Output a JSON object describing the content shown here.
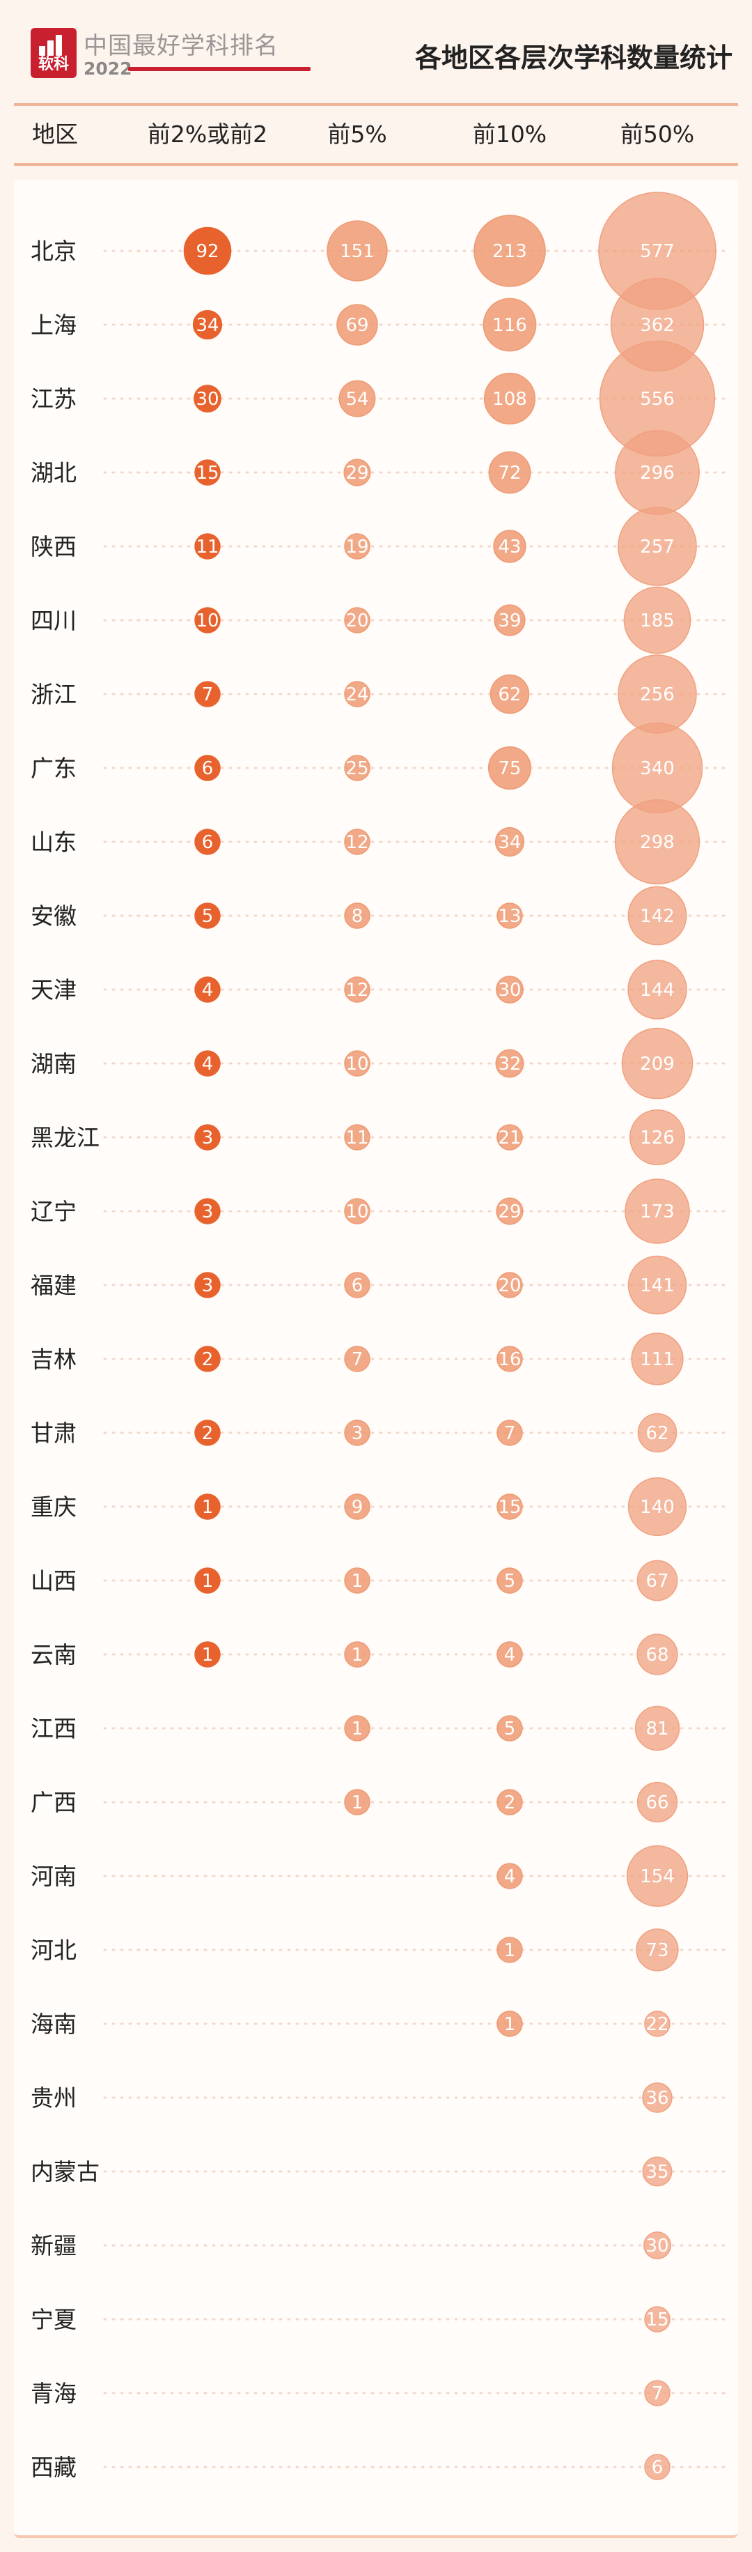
{
  "header": {
    "brand_name": "中国最好学科排名",
    "brand_year": "2022",
    "logo_text": "软科",
    "title": "各地区各层次学科数量统计"
  },
  "columns": [
    "地区",
    "前2%或前2",
    "前5%",
    "前10%",
    "前50%"
  ],
  "colors": {
    "brand_red": "#c8202f",
    "col1": "#e8622e",
    "col2": "#ef9a73",
    "col3": "#ef9a73",
    "col4": "#f0a180",
    "header_rule": "#f1b59a",
    "dots": "#f3d8c9"
  },
  "chart_data": {
    "type": "bubble",
    "categories": [
      "北京",
      "上海",
      "江苏",
      "湖北",
      "陕西",
      "四川",
      "浙江",
      "广东",
      "山东",
      "安徽",
      "天津",
      "湖南",
      "黑龙江",
      "辽宁",
      "福建",
      "吉林",
      "甘肃",
      "重庆",
      "山西",
      "云南",
      "江西",
      "广西",
      "河南",
      "河北",
      "海南",
      "贵州",
      "内蒙古",
      "新疆",
      "宁夏",
      "青海",
      "西藏"
    ],
    "series": [
      {
        "name": "前2%或前2",
        "values": [
          92,
          34,
          30,
          15,
          11,
          10,
          7,
          6,
          6,
          5,
          4,
          4,
          3,
          3,
          3,
          2,
          2,
          1,
          1,
          1,
          null,
          null,
          null,
          null,
          null,
          null,
          null,
          null,
          null,
          null,
          null
        ]
      },
      {
        "name": "前5%",
        "values": [
          151,
          69,
          54,
          29,
          19,
          20,
          24,
          25,
          12,
          8,
          12,
          10,
          11,
          10,
          6,
          7,
          3,
          9,
          1,
          1,
          1,
          1,
          null,
          null,
          null,
          null,
          null,
          null,
          null,
          null,
          null
        ]
      },
      {
        "name": "前10%",
        "values": [
          213,
          116,
          108,
          72,
          43,
          39,
          62,
          75,
          34,
          13,
          30,
          32,
          21,
          29,
          20,
          16,
          7,
          15,
          5,
          4,
          5,
          2,
          4,
          1,
          1,
          null,
          null,
          null,
          null,
          null,
          null
        ]
      },
      {
        "name": "前50%",
        "values": [
          577,
          362,
          556,
          296,
          257,
          185,
          256,
          340,
          298,
          142,
          144,
          209,
          126,
          173,
          141,
          111,
          62,
          140,
          67,
          68,
          81,
          66,
          154,
          73,
          22,
          36,
          35,
          30,
          15,
          7,
          6
        ]
      }
    ]
  }
}
